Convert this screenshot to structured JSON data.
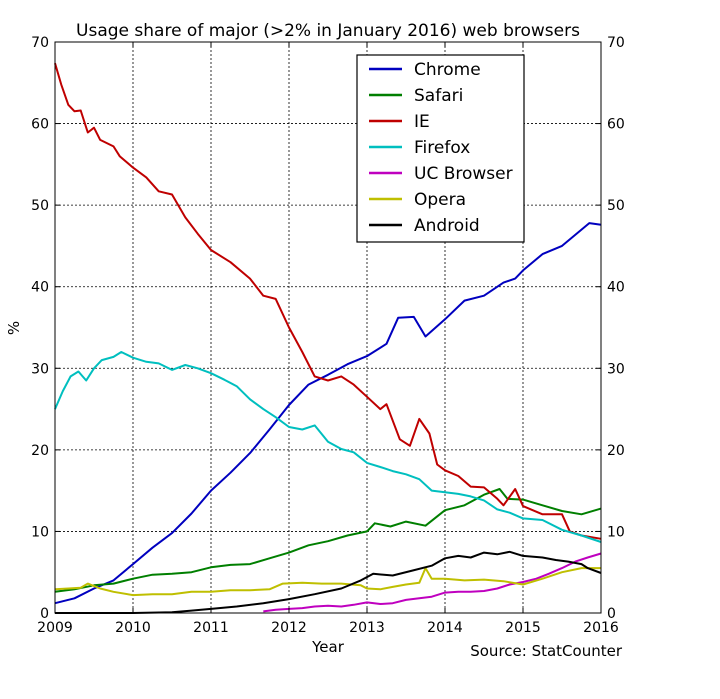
{
  "chart_data": {
    "type": "line",
    "title": "Usage share of major (>2% in January 2016) web browsers",
    "xlabel": "Year",
    "ylabel": "%",
    "source": "Source: StatCounter",
    "xlim": [
      2009,
      2016
    ],
    "ylim": [
      0,
      70
    ],
    "x_ticks": [
      "2009",
      "2010",
      "2011",
      "2012",
      "2013",
      "2014",
      "2015",
      "2016"
    ],
    "y_ticks": [
      "0",
      "10",
      "20",
      "30",
      "40",
      "50",
      "60",
      "70"
    ],
    "grid": true,
    "legend_position": "top-right",
    "series": [
      {
        "name": "Chrome",
        "color": "#0000bf",
        "points": [
          [
            2009.0,
            1.2
          ],
          [
            2009.25,
            1.8
          ],
          [
            2009.5,
            3.0
          ],
          [
            2009.75,
            4.0
          ],
          [
            2010.0,
            6.0
          ],
          [
            2010.25,
            8.0
          ],
          [
            2010.5,
            9.8
          ],
          [
            2010.75,
            12.2
          ],
          [
            2011.0,
            15.0
          ],
          [
            2011.25,
            17.2
          ],
          [
            2011.5,
            19.6
          ],
          [
            2011.75,
            22.5
          ],
          [
            2012.0,
            25.5
          ],
          [
            2012.25,
            28.0
          ],
          [
            2012.5,
            29.2
          ],
          [
            2012.75,
            30.5
          ],
          [
            2013.0,
            31.5
          ],
          [
            2013.25,
            33.0
          ],
          [
            2013.4,
            36.2
          ],
          [
            2013.6,
            36.3
          ],
          [
            2013.75,
            33.9
          ],
          [
            2014.0,
            36.0
          ],
          [
            2014.25,
            38.3
          ],
          [
            2014.5,
            38.9
          ],
          [
            2014.75,
            40.5
          ],
          [
            2014.9,
            41.0
          ],
          [
            2015.0,
            42.0
          ],
          [
            2015.25,
            44.0
          ],
          [
            2015.5,
            45.0
          ],
          [
            2015.75,
            47.0
          ],
          [
            2015.85,
            47.8
          ],
          [
            2016.0,
            47.6
          ]
        ]
      },
      {
        "name": "Safari",
        "color": "#007f00",
        "points": [
          [
            2009.0,
            2.6
          ],
          [
            2009.25,
            2.9
          ],
          [
            2009.5,
            3.4
          ],
          [
            2009.75,
            3.6
          ],
          [
            2010.0,
            4.2
          ],
          [
            2010.25,
            4.7
          ],
          [
            2010.5,
            4.8
          ],
          [
            2010.75,
            5.0
          ],
          [
            2011.0,
            5.6
          ],
          [
            2011.25,
            5.9
          ],
          [
            2011.5,
            6.0
          ],
          [
            2011.75,
            6.7
          ],
          [
            2012.0,
            7.4
          ],
          [
            2012.25,
            8.3
          ],
          [
            2012.5,
            8.8
          ],
          [
            2012.75,
            9.5
          ],
          [
            2013.0,
            10.0
          ],
          [
            2013.1,
            11.0
          ],
          [
            2013.3,
            10.6
          ],
          [
            2013.5,
            11.2
          ],
          [
            2013.75,
            10.7
          ],
          [
            2014.0,
            12.6
          ],
          [
            2014.25,
            13.2
          ],
          [
            2014.5,
            14.5
          ],
          [
            2014.7,
            15.2
          ],
          [
            2014.8,
            14.0
          ],
          [
            2015.0,
            13.9
          ],
          [
            2015.25,
            13.2
          ],
          [
            2015.5,
            12.5
          ],
          [
            2015.75,
            12.1
          ],
          [
            2016.0,
            12.8
          ]
        ]
      },
      {
        "name": "IE",
        "color": "#bf0000",
        "points": [
          [
            2009.0,
            67.4
          ],
          [
            2009.08,
            64.8
          ],
          [
            2009.17,
            62.3
          ],
          [
            2009.25,
            61.5
          ],
          [
            2009.33,
            61.6
          ],
          [
            2009.42,
            58.9
          ],
          [
            2009.5,
            59.5
          ],
          [
            2009.58,
            58.0
          ],
          [
            2009.75,
            57.2
          ],
          [
            2009.83,
            56.0
          ],
          [
            2010.0,
            54.6
          ],
          [
            2010.17,
            53.4
          ],
          [
            2010.33,
            51.7
          ],
          [
            2010.5,
            51.3
          ],
          [
            2010.67,
            48.5
          ],
          [
            2010.83,
            46.5
          ],
          [
            2011.0,
            44.5
          ],
          [
            2011.25,
            43.0
          ],
          [
            2011.5,
            41.0
          ],
          [
            2011.67,
            38.9
          ],
          [
            2011.83,
            38.5
          ],
          [
            2012.0,
            35.0
          ],
          [
            2012.17,
            32.0
          ],
          [
            2012.33,
            29.0
          ],
          [
            2012.5,
            28.5
          ],
          [
            2012.67,
            29.0
          ],
          [
            2012.83,
            28.0
          ],
          [
            2013.0,
            26.5
          ],
          [
            2013.17,
            25.0
          ],
          [
            2013.25,
            25.6
          ],
          [
            2013.42,
            21.3
          ],
          [
            2013.55,
            20.5
          ],
          [
            2013.67,
            23.8
          ],
          [
            2013.8,
            22.0
          ],
          [
            2013.9,
            18.2
          ],
          [
            2014.0,
            17.5
          ],
          [
            2014.17,
            16.8
          ],
          [
            2014.33,
            15.5
          ],
          [
            2014.5,
            15.4
          ],
          [
            2014.67,
            14.0
          ],
          [
            2014.75,
            13.2
          ],
          [
            2014.9,
            15.2
          ],
          [
            2015.0,
            13.1
          ],
          [
            2015.25,
            12.1
          ],
          [
            2015.5,
            12.1
          ],
          [
            2015.6,
            10.0
          ],
          [
            2015.75,
            9.5
          ],
          [
            2016.0,
            9.1
          ]
        ]
      },
      {
        "name": "Firefox",
        "color": "#00bfbf",
        "points": [
          [
            2009.0,
            25.0
          ],
          [
            2009.1,
            27.2
          ],
          [
            2009.2,
            29.0
          ],
          [
            2009.3,
            29.6
          ],
          [
            2009.4,
            28.5
          ],
          [
            2009.5,
            30.0
          ],
          [
            2009.6,
            31.0
          ],
          [
            2009.75,
            31.4
          ],
          [
            2009.85,
            32.0
          ],
          [
            2010.0,
            31.3
          ],
          [
            2010.17,
            30.8
          ],
          [
            2010.33,
            30.6
          ],
          [
            2010.5,
            29.8
          ],
          [
            2010.67,
            30.4
          ],
          [
            2010.83,
            30.0
          ],
          [
            2011.0,
            29.4
          ],
          [
            2011.17,
            28.6
          ],
          [
            2011.33,
            27.8
          ],
          [
            2011.5,
            26.2
          ],
          [
            2011.67,
            25.0
          ],
          [
            2011.83,
            24.0
          ],
          [
            2012.0,
            22.8
          ],
          [
            2012.17,
            22.5
          ],
          [
            2012.33,
            23.0
          ],
          [
            2012.5,
            21.0
          ],
          [
            2012.67,
            20.1
          ],
          [
            2012.83,
            19.7
          ],
          [
            2013.0,
            18.4
          ],
          [
            2013.17,
            17.9
          ],
          [
            2013.33,
            17.4
          ],
          [
            2013.5,
            17.0
          ],
          [
            2013.67,
            16.4
          ],
          [
            2013.83,
            15.0
          ],
          [
            2014.0,
            14.8
          ],
          [
            2014.17,
            14.6
          ],
          [
            2014.33,
            14.3
          ],
          [
            2014.5,
            13.8
          ],
          [
            2014.67,
            12.7
          ],
          [
            2014.83,
            12.3
          ],
          [
            2015.0,
            11.6
          ],
          [
            2015.25,
            11.4
          ],
          [
            2015.5,
            10.2
          ],
          [
            2015.75,
            9.5
          ],
          [
            2016.0,
            8.7
          ]
        ]
      },
      {
        "name": "UC Browser",
        "color": "#bf00bf",
        "points": [
          [
            2011.67,
            0.2
          ],
          [
            2011.83,
            0.4
          ],
          [
            2012.0,
            0.5
          ],
          [
            2012.17,
            0.6
          ],
          [
            2012.33,
            0.8
          ],
          [
            2012.5,
            0.9
          ],
          [
            2012.67,
            0.8
          ],
          [
            2012.83,
            1.0
          ],
          [
            2013.0,
            1.3
          ],
          [
            2013.17,
            1.1
          ],
          [
            2013.33,
            1.2
          ],
          [
            2013.5,
            1.6
          ],
          [
            2013.67,
            1.8
          ],
          [
            2013.83,
            2.0
          ],
          [
            2014.0,
            2.5
          ],
          [
            2014.17,
            2.6
          ],
          [
            2014.33,
            2.6
          ],
          [
            2014.5,
            2.7
          ],
          [
            2014.67,
            3.0
          ],
          [
            2014.83,
            3.5
          ],
          [
            2015.0,
            3.8
          ],
          [
            2015.17,
            4.2
          ],
          [
            2015.33,
            4.8
          ],
          [
            2015.5,
            5.5
          ],
          [
            2015.67,
            6.3
          ],
          [
            2015.83,
            6.8
          ],
          [
            2016.0,
            7.3
          ]
        ]
      },
      {
        "name": "Opera",
        "color": "#bfbf00",
        "points": [
          [
            2009.0,
            2.9
          ],
          [
            2009.17,
            3.0
          ],
          [
            2009.33,
            3.1
          ],
          [
            2009.42,
            3.6
          ],
          [
            2009.58,
            3.0
          ],
          [
            2009.75,
            2.6
          ],
          [
            2010.0,
            2.2
          ],
          [
            2010.25,
            2.3
          ],
          [
            2010.5,
            2.3
          ],
          [
            2010.75,
            2.6
          ],
          [
            2011.0,
            2.6
          ],
          [
            2011.25,
            2.8
          ],
          [
            2011.5,
            2.8
          ],
          [
            2011.75,
            2.9
          ],
          [
            2011.92,
            3.6
          ],
          [
            2012.17,
            3.7
          ],
          [
            2012.42,
            3.6
          ],
          [
            2012.67,
            3.6
          ],
          [
            2012.92,
            3.4
          ],
          [
            2013.0,
            3.0
          ],
          [
            2013.17,
            2.9
          ],
          [
            2013.33,
            3.2
          ],
          [
            2013.5,
            3.5
          ],
          [
            2013.67,
            3.7
          ],
          [
            2013.75,
            5.5
          ],
          [
            2013.83,
            4.2
          ],
          [
            2014.0,
            4.2
          ],
          [
            2014.25,
            4.0
          ],
          [
            2014.5,
            4.1
          ],
          [
            2014.75,
            3.9
          ],
          [
            2015.0,
            3.5
          ],
          [
            2015.25,
            4.2
          ],
          [
            2015.5,
            5.0
          ],
          [
            2015.75,
            5.5
          ],
          [
            2016.0,
            5.5
          ]
        ]
      },
      {
        "name": "Android",
        "color": "#000000",
        "points": [
          [
            2009.0,
            0.0
          ],
          [
            2009.5,
            0.0
          ],
          [
            2010.0,
            0.0
          ],
          [
            2010.5,
            0.1
          ],
          [
            2010.75,
            0.3
          ],
          [
            2011.0,
            0.5
          ],
          [
            2011.33,
            0.8
          ],
          [
            2011.67,
            1.2
          ],
          [
            2012.0,
            1.7
          ],
          [
            2012.33,
            2.3
          ],
          [
            2012.67,
            3.0
          ],
          [
            2012.92,
            4.0
          ],
          [
            2013.08,
            4.8
          ],
          [
            2013.33,
            4.6
          ],
          [
            2013.58,
            5.2
          ],
          [
            2013.83,
            5.8
          ],
          [
            2014.0,
            6.7
          ],
          [
            2014.17,
            7.0
          ],
          [
            2014.33,
            6.8
          ],
          [
            2014.5,
            7.4
          ],
          [
            2014.67,
            7.2
          ],
          [
            2014.83,
            7.5
          ],
          [
            2015.0,
            7.0
          ],
          [
            2015.25,
            6.8
          ],
          [
            2015.42,
            6.5
          ],
          [
            2015.58,
            6.3
          ],
          [
            2015.75,
            6.0
          ],
          [
            2015.83,
            5.5
          ],
          [
            2016.0,
            4.9
          ]
        ]
      }
    ]
  }
}
